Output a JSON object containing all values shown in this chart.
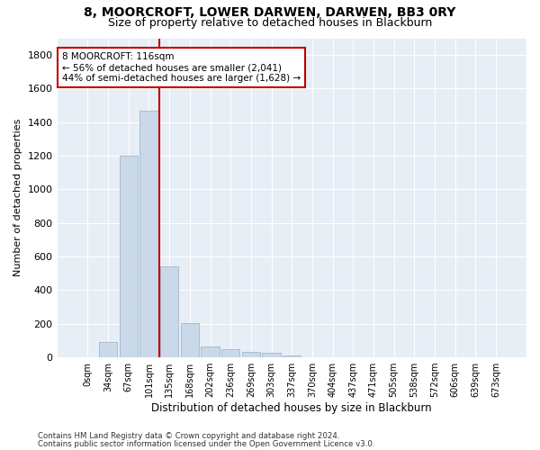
{
  "title": "8, MOORCROFT, LOWER DARWEN, DARWEN, BB3 0RY",
  "subtitle": "Size of property relative to detached houses in Blackburn",
  "xlabel": "Distribution of detached houses by size in Blackburn",
  "ylabel": "Number of detached properties",
  "bar_labels": [
    "0sqm",
    "34sqm",
    "67sqm",
    "101sqm",
    "135sqm",
    "168sqm",
    "202sqm",
    "236sqm",
    "269sqm",
    "303sqm",
    "337sqm",
    "370sqm",
    "404sqm",
    "437sqm",
    "471sqm",
    "505sqm",
    "538sqm",
    "572sqm",
    "606sqm",
    "639sqm",
    "673sqm"
  ],
  "bar_values": [
    0,
    90,
    1200,
    1470,
    540,
    205,
    65,
    48,
    35,
    28,
    10,
    0,
    0,
    0,
    0,
    0,
    0,
    0,
    0,
    0,
    0
  ],
  "bar_color": "#c9d9ea",
  "bar_edgecolor": "#aabcce",
  "vline_x": 3.5,
  "vline_color": "#c00000",
  "annotation_text": "8 MOORCROFT: 116sqm\n← 56% of detached houses are smaller (2,041)\n44% of semi-detached houses are larger (1,628) →",
  "annotation_box_color": "#ffffff",
  "annotation_box_edgecolor": "#c00000",
  "ylim": [
    0,
    1900
  ],
  "yticks": [
    0,
    200,
    400,
    600,
    800,
    1000,
    1200,
    1400,
    1600,
    1800
  ],
  "bg_color": "#e8eef6",
  "footer1": "Contains HM Land Registry data © Crown copyright and database right 2024.",
  "footer2": "Contains public sector information licensed under the Open Government Licence v3.0.",
  "title_fontsize": 10,
  "subtitle_fontsize": 9,
  "grid_color": "#d0d8e4"
}
